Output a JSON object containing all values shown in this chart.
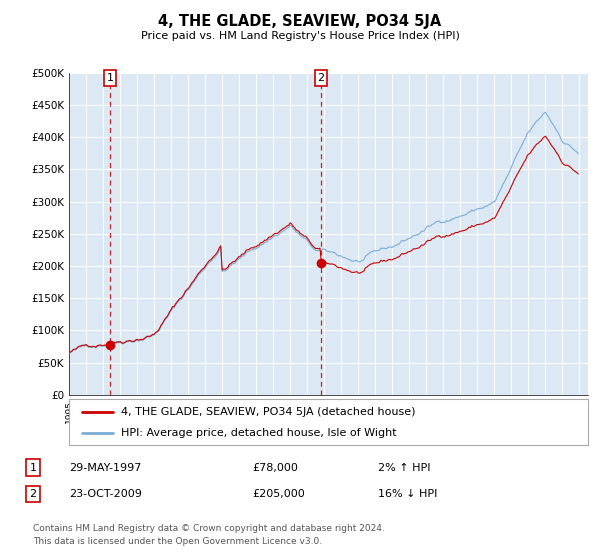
{
  "title": "4, THE GLADE, SEAVIEW, PO34 5JA",
  "subtitle": "Price paid vs. HM Land Registry's House Price Index (HPI)",
  "ylim": [
    0,
    500000
  ],
  "yticks": [
    0,
    50000,
    100000,
    150000,
    200000,
    250000,
    300000,
    350000,
    400000,
    450000,
    500000
  ],
  "ytick_labels": [
    "£0",
    "£50K",
    "£100K",
    "£150K",
    "£200K",
    "£250K",
    "£300K",
    "£350K",
    "£400K",
    "£450K",
    "£500K"
  ],
  "plot_bg_color": "#dce9f5",
  "fig_bg_color": "#ffffff",
  "sale1_date": 1997.41,
  "sale1_price": 78000,
  "sale2_date": 2009.81,
  "sale2_price": 205000,
  "sale_dot_color": "#cc0000",
  "vline_color": "#cc0000",
  "hpi_line_color": "#7aaed6",
  "price_line_color": "#cc0000",
  "legend1_label": "4, THE GLADE, SEAVIEW, PO34 5JA (detached house)",
  "legend2_label": "HPI: Average price, detached house, Isle of Wight",
  "table_rows": [
    [
      "1",
      "29-MAY-1997",
      "£78,000",
      "2% ↑ HPI"
    ],
    [
      "2",
      "23-OCT-2009",
      "£205,000",
      "16% ↓ HPI"
    ]
  ],
  "footer": "Contains HM Land Registry data © Crown copyright and database right 2024.\nThis data is licensed under the Open Government Licence v3.0.",
  "xmin": 1995.0,
  "xmax": 2025.5
}
